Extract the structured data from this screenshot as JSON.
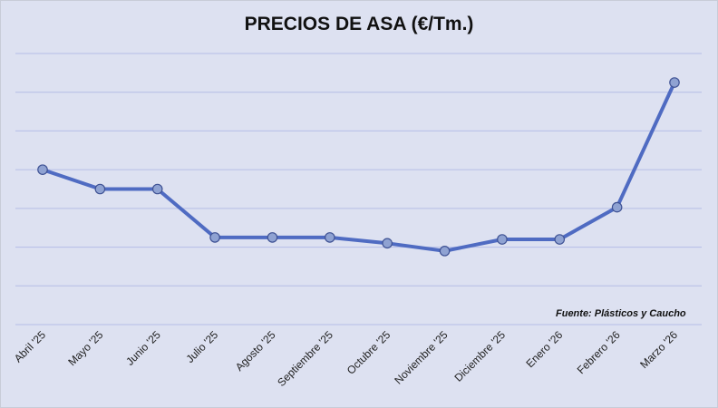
{
  "chart_data": {
    "type": "line",
    "title": "PRECIOS DE ASA (€/Tm.)",
    "annotation": "Fuente: Plásticos y Caucho",
    "categories": [
      "Abril '25",
      "Mayo '25",
      "Junio '25",
      "Julio '25",
      "Agosto '25",
      "Septiembre '25",
      "Octubre '25",
      "Noviembre '25",
      "Diciembre '25",
      "Enero '26",
      "Febrero '26",
      "Marzo '26"
    ],
    "series": [
      {
        "values": [
          3.0,
          2.5,
          2.5,
          1.25,
          1.25,
          1.25,
          1.1,
          0.9,
          1.2,
          1.2,
          2.03,
          5.25
        ]
      }
    ],
    "ylim": [
      -1,
      6
    ],
    "y_tick_labels_visible": false,
    "grid": true,
    "line_color": "#4f6bc2",
    "marker_color": "#8fa2d2",
    "marker_edge_color": "#3f5294",
    "background_color": "#dde1f1",
    "grid_color": "#b5bde6"
  }
}
